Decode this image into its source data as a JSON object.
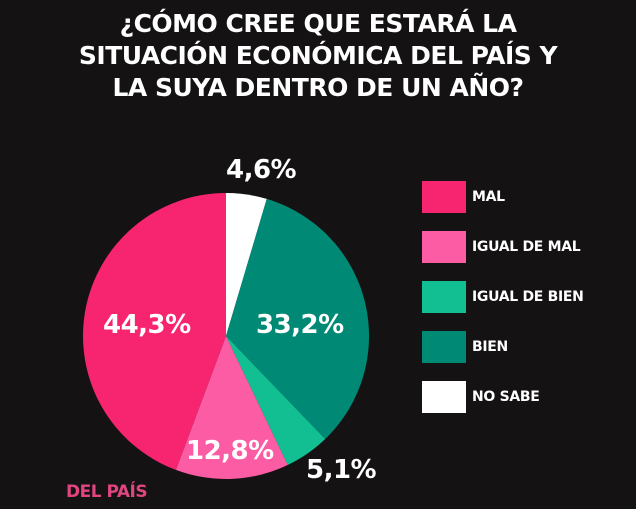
{
  "title": {
    "lines": [
      "¿CÓMO CREE QUE ESTARÁ LA",
      "SITUACIÓN ECONÓMICA DEL PAÍS Y",
      "LA SUYA DENTRO DE UN AÑO?"
    ]
  },
  "subtitle": "DEL PAÍS",
  "legend": [
    {
      "label": "MAL",
      "color": "#f7246f"
    },
    {
      "label": "IGUAL DE MAL",
      "color": "#fb5ca3"
    },
    {
      "label": "IGUAL DE BIEN",
      "color": "#12bf92"
    },
    {
      "label": "BIEN",
      "color": "#008a75"
    },
    {
      "label": "NO SABE",
      "color": "#ffffff"
    }
  ],
  "labels": {
    "no_sabe": "4,6%",
    "bien": "33,2%",
    "igual_de_bien": "5,1%",
    "igual_de_mal": "12,8%",
    "mal": "44,3%"
  },
  "chart_data": {
    "type": "pie",
    "title": "¿CÓMO CREE QUE ESTARÁ LA SITUACIÓN ECONÓMICA DEL PAÍS Y LA SUYA DENTRO DE UN AÑO?",
    "subtitle": "DEL PAÍS",
    "categories": [
      "NO SABE",
      "BIEN",
      "IGUAL DE BIEN",
      "IGUAL DE MAL",
      "MAL"
    ],
    "values": [
      4.6,
      33.2,
      5.1,
      12.8,
      44.3
    ],
    "value_labels": [
      "4,6%",
      "33,2%",
      "5,1%",
      "12,8%",
      "44,3%"
    ],
    "colors": [
      "#ffffff",
      "#008a75",
      "#12bf92",
      "#fb5ca3",
      "#f7246f"
    ],
    "start_angle": "top (12 o'clock), clockwise",
    "legend_position": "right",
    "legend_entries": [
      "MAL",
      "IGUAL DE MAL",
      "IGUAL DE BIEN",
      "BIEN",
      "NO SABE"
    ]
  }
}
